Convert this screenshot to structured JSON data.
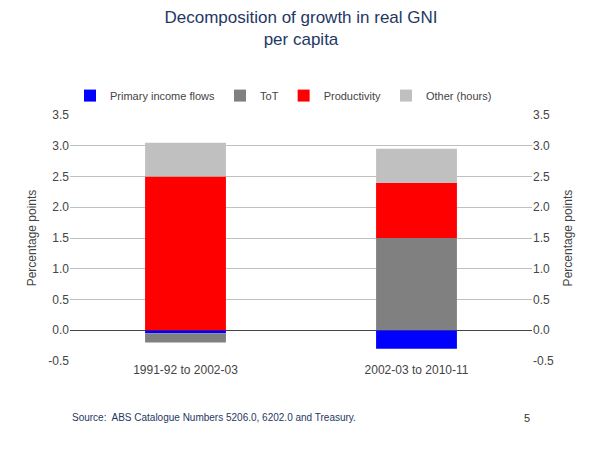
{
  "chart_data": {
    "type": "bar",
    "stacked": true,
    "title": "Decomposition of growth in real GNI\nper capita",
    "categories": [
      "1991-92 to 2002-03",
      "2002-03 to 2010-11"
    ],
    "series": [
      {
        "name": "Primary income flows",
        "color": "#0000FF",
        "values": [
          -0.05,
          -0.3
        ]
      },
      {
        "name": "ToT",
        "color": "#808080",
        "values": [
          -0.15,
          1.5
        ]
      },
      {
        "name": "Productivity",
        "color": "#FF0000",
        "values": [
          2.5,
          0.9
        ]
      },
      {
        "name": "Other (hours)",
        "color": "#C0C0C0",
        "values": [
          0.55,
          0.55
        ]
      }
    ],
    "ylabel": "Percentage points",
    "y2label": "Percentage points",
    "ylim": [
      -0.5,
      3.5
    ],
    "yticks": [
      -0.5,
      {
        "value": 0,
        "label": "0.0"
      },
      0.5,
      {
        "value": 1,
        "label": "1.0"
      },
      1.5,
      {
        "value": 2,
        "label": "2.0"
      },
      2.5,
      {
        "value": 3,
        "label": "3.0"
      },
      3.5
    ],
    "y2lim": [
      -0.5,
      3.5
    ],
    "y2ticks": [
      -0.5,
      {
        "value": 0,
        "label": "0.0"
      },
      0.5,
      {
        "value": 1,
        "label": "1.0"
      },
      1.5,
      {
        "value": 2,
        "label": "2.0"
      },
      2.5,
      {
        "value": 3,
        "label": "3.0"
      },
      3.5
    ],
    "grid": true,
    "legend": "upper left",
    "annotations": [
      "Source:  ABS Catalogue Numbers 5206.0, 6202.0 and Treasury.",
      "5"
    ]
  }
}
